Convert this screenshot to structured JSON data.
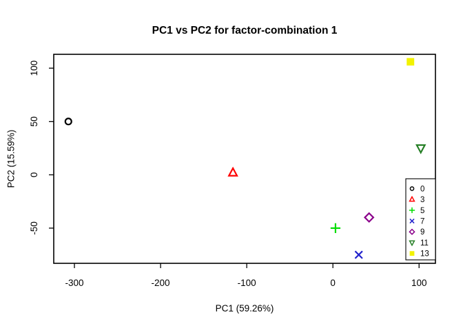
{
  "chart_data": {
    "type": "scatter",
    "title": "PC1 vs PC2 for factor-combination 1",
    "xlabel": "PC1 (59.26%)",
    "ylabel": "PC2 (15.59%)",
    "xlim": [
      -324,
      119
    ],
    "ylim": [
      -83,
      113
    ],
    "x_ticks": [
      -300,
      -200,
      -100,
      0,
      100
    ],
    "y_ticks": [
      -50,
      0,
      50,
      100
    ],
    "grid": false,
    "legend_position": "inside-right",
    "axis_color": "#000000",
    "background_color": "#ffffff",
    "series": [
      {
        "name": "0",
        "marker": "circle-open",
        "color": "#000000",
        "points": [
          [
            -307,
            50
          ]
        ]
      },
      {
        "name": "3",
        "marker": "triangle-up-open",
        "color": "#ff0000",
        "points": [
          [
            -116,
            2
          ]
        ]
      },
      {
        "name": "5",
        "marker": "plus",
        "color": "#00dd00",
        "points": [
          [
            3,
            -50
          ]
        ]
      },
      {
        "name": "7",
        "marker": "x",
        "color": "#2222cc",
        "points": [
          [
            30,
            -75
          ]
        ]
      },
      {
        "name": "9",
        "marker": "diamond-open",
        "color": "#8b008b",
        "points": [
          [
            42,
            -40
          ]
        ]
      },
      {
        "name": "11",
        "marker": "triangle-down-open",
        "color": "#267f26",
        "points": [
          [
            102,
            25
          ]
        ]
      },
      {
        "name": "13",
        "marker": "square-filled",
        "color": "#f2f200",
        "points": [
          [
            90,
            106
          ]
        ]
      }
    ]
  }
}
